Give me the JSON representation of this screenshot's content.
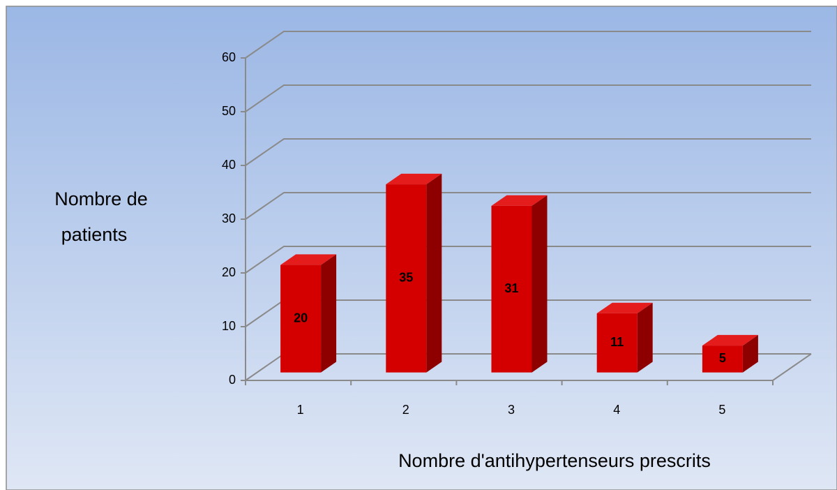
{
  "chart_data": {
    "type": "bar3d",
    "y_label": [
      "Nombre de",
      "patients"
    ],
    "x_label": "Nombre d'antihypertenseurs prescrits",
    "categories": [
      "1",
      "2",
      "3",
      "4",
      "5"
    ],
    "values": [
      20,
      35,
      31,
      11,
      5
    ],
    "color": "#d40000",
    "ylim": [
      0,
      60
    ],
    "yticks": [
      0,
      10,
      20,
      30,
      40,
      50,
      60
    ],
    "grid": true
  }
}
